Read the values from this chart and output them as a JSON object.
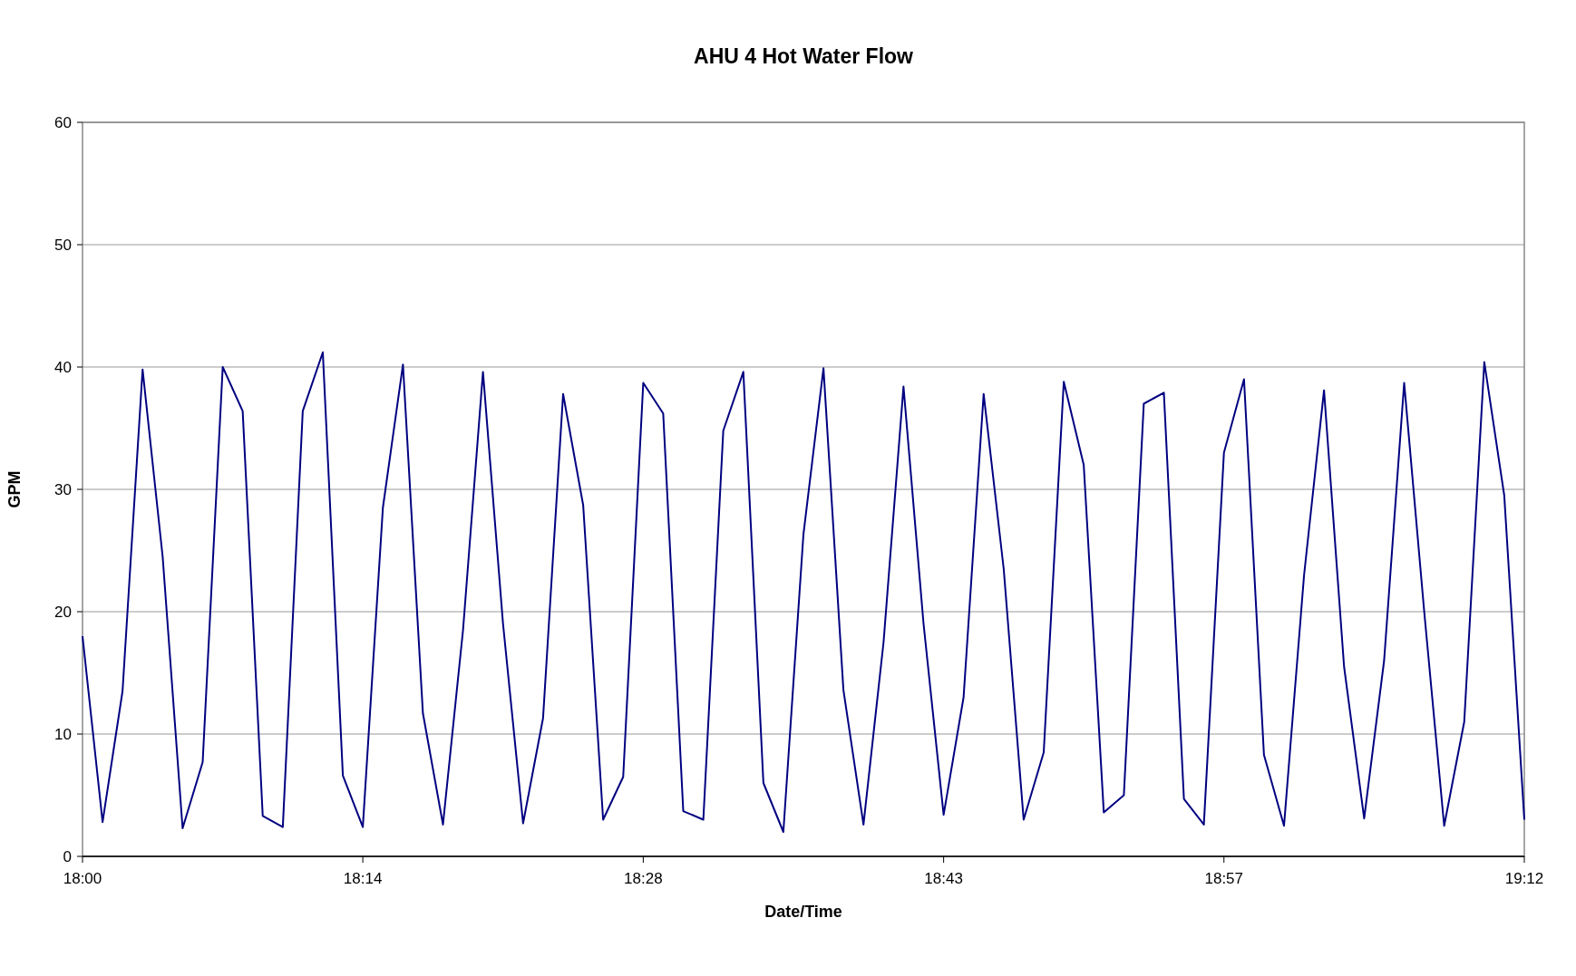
{
  "chart_data": {
    "type": "line",
    "title": "AHU 4 Hot Water Flow",
    "xlabel": "Date/Time",
    "ylabel": "GPM",
    "x": [
      18,
      18.0167,
      18.0333,
      18.05,
      18.0667,
      18.0833,
      18.1,
      18.1167,
      18.1333,
      18.15,
      18.1667,
      18.1833,
      18.2,
      18.2167,
      18.2333,
      18.25,
      18.2667,
      18.2833,
      18.3,
      18.3167,
      18.3333,
      18.35,
      18.3667,
      18.3833,
      18.4,
      18.4167,
      18.4333,
      18.45,
      18.4667,
      18.4833,
      18.5,
      18.5167,
      18.5333,
      18.55,
      18.5667,
      18.5833,
      18.6,
      18.6167,
      18.6333,
      18.65,
      18.6667,
      18.6833,
      18.7,
      18.7167,
      18.7333,
      18.75,
      18.7667,
      18.7833,
      18.8,
      18.8167,
      18.8333,
      18.85,
      18.8667,
      18.8833,
      18.9,
      18.9167,
      18.9333,
      18.95,
      18.9667,
      18.9833,
      19,
      19.0167,
      19.0333,
      19.05,
      19.0667,
      19.0833,
      19.1,
      19.1167,
      19.1333,
      19.15,
      19.1667,
      19.1833,
      19.2
    ],
    "series": [
      {
        "color": "#000080",
        "values": [
          18,
          2.8,
          13.5,
          39.8,
          24.5,
          2.3,
          7.7,
          40,
          36.4,
          3.3,
          2.4,
          36.4,
          41.2,
          6.6,
          2.4,
          28.5,
          40.2,
          11.7,
          2.6,
          18.5,
          39.6,
          19,
          2.7,
          11.3,
          37.8,
          28.7,
          3,
          6.5,
          38.7,
          36.2,
          3.7,
          3,
          34.8,
          39.6,
          6,
          2,
          26.3,
          39.9,
          13.6,
          2.6,
          17.5,
          38.4,
          19,
          3.4,
          13,
          37.8,
          23.5,
          3,
          8.5,
          38.8,
          32,
          3.6,
          5,
          37,
          37.9,
          4.7,
          2.6,
          33,
          39,
          8.3,
          2.5,
          23,
          38.1,
          15.5,
          3.1,
          16,
          38.7,
          20,
          2.5,
          11,
          40.4,
          29.5,
          3
        ]
      }
    ],
    "xlim": [
      18,
      19.2
    ],
    "xticks": [
      {
        "value": 18,
        "label": "18:00"
      },
      {
        "value": 18.2333,
        "label": "18:14"
      },
      {
        "value": 18.4667,
        "label": "18:28"
      },
      {
        "value": 18.7167,
        "label": "18:43"
      },
      {
        "value": 18.95,
        "label": "18:57"
      },
      {
        "value": 19.2,
        "label": "19:12"
      }
    ],
    "ylim": [
      0,
      60
    ],
    "yticks": [
      0,
      10,
      20,
      30,
      40,
      50,
      60
    ],
    "grid": "y",
    "marker": "none",
    "line_style": "solid"
  }
}
